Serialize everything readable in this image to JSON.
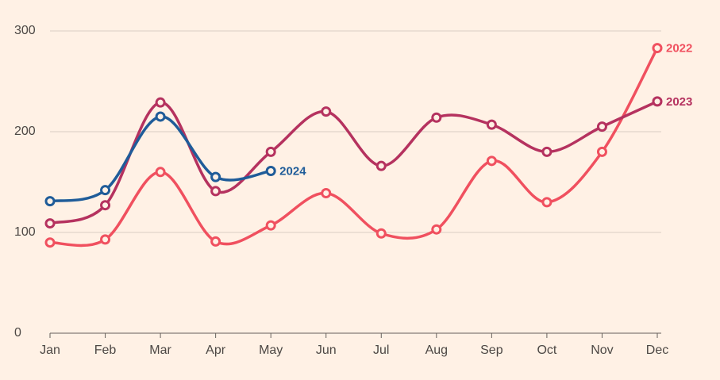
{
  "chart_data": {
    "type": "line",
    "categories": [
      "Jan",
      "Feb",
      "Mar",
      "Apr",
      "May",
      "Jun",
      "Jul",
      "Aug",
      "Sep",
      "Oct",
      "Nov",
      "Dec"
    ],
    "series": [
      {
        "name": "2022",
        "color": "#f0505f",
        "values": [
          90,
          93,
          160,
          91,
          107,
          139,
          99,
          103,
          171,
          130,
          180,
          283
        ]
      },
      {
        "name": "2023",
        "color": "#b5325f",
        "values": [
          109,
          127,
          229,
          141,
          180,
          220,
          166,
          214,
          207,
          180,
          205,
          230
        ]
      },
      {
        "name": "2024",
        "color": "#1f5c99",
        "values": [
          131,
          142,
          215,
          155,
          161,
          null,
          null,
          null,
          null,
          null,
          null,
          null
        ]
      }
    ],
    "ylim": [
      0,
      300
    ],
    "yticks": [
      0,
      100,
      200,
      300
    ],
    "grid": true
  }
}
